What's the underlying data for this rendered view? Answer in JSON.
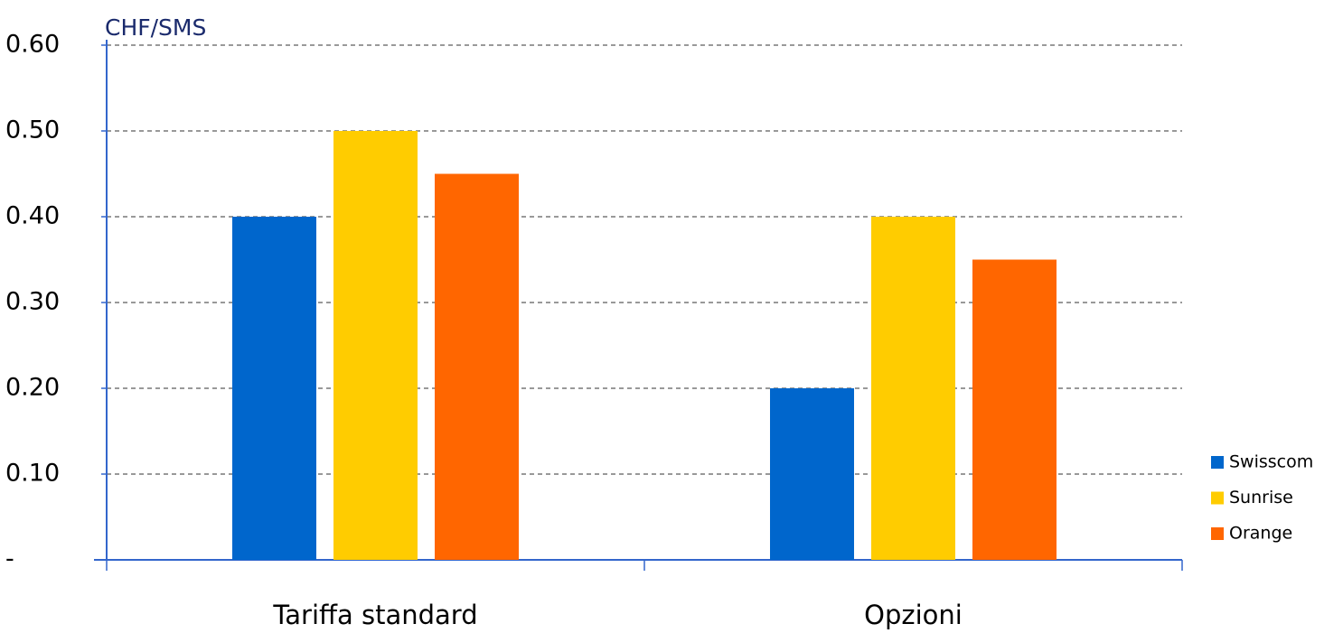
{
  "chart_data": {
    "type": "bar",
    "y_axis_label": "CHF/SMS",
    "categories": [
      "Tariffa standard",
      "Opzioni"
    ],
    "series": [
      {
        "name": "Swisscom",
        "color": "#0066cc",
        "values": [
          0.4,
          0.2
        ]
      },
      {
        "name": "Sunrise",
        "color": "#ffcc00",
        "values": [
          0.5,
          0.4
        ]
      },
      {
        "name": "Orange",
        "color": "#ff6600",
        "values": [
          0.45,
          0.35
        ]
      }
    ],
    "ylim": [
      0,
      0.6
    ],
    "yticks": [
      {
        "value": 0,
        "label": "-"
      },
      {
        "value": 0.1,
        "label": "0.10"
      },
      {
        "value": 0.2,
        "label": "0.20"
      },
      {
        "value": 0.3,
        "label": "0.30"
      },
      {
        "value": 0.4,
        "label": "0.40"
      },
      {
        "value": 0.5,
        "label": "0.50"
      },
      {
        "value": 0.6,
        "label": "0.60"
      }
    ],
    "grid": true,
    "legend": "right"
  }
}
